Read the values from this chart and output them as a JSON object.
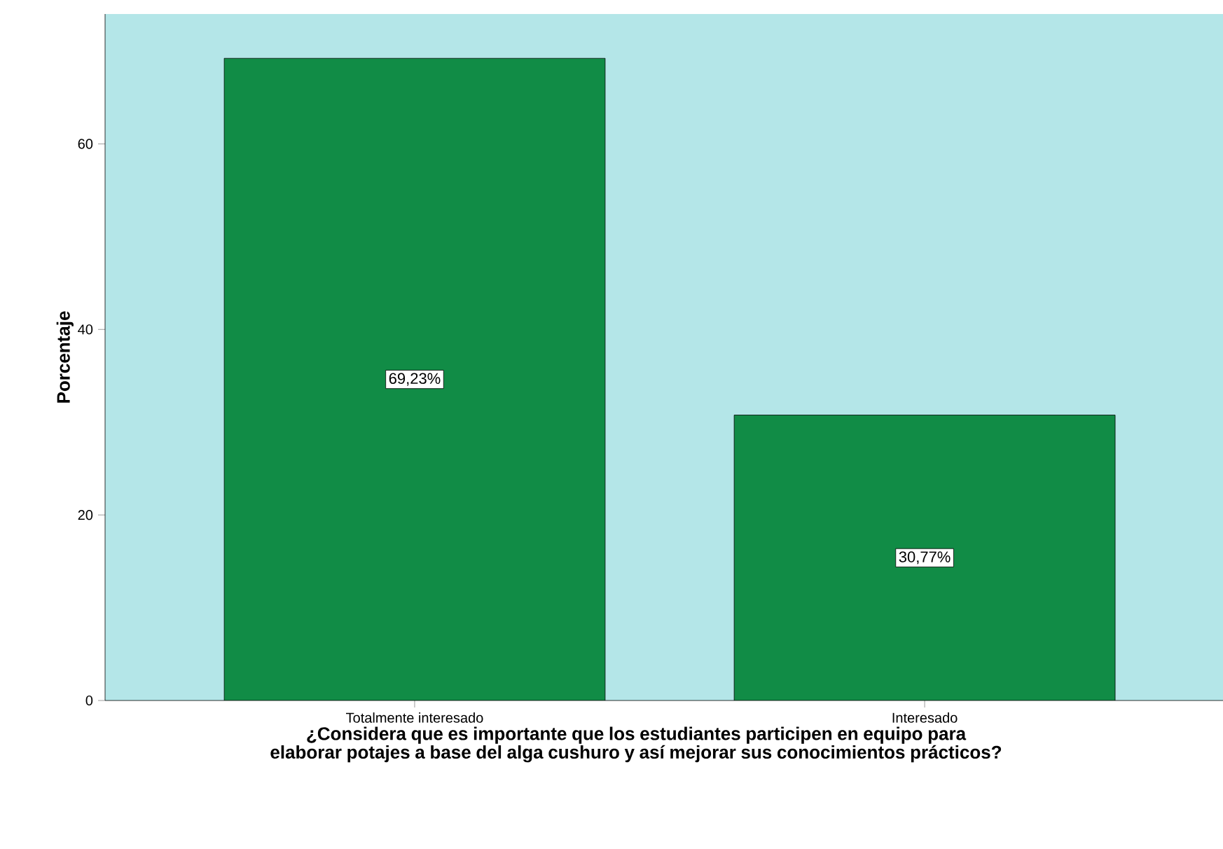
{
  "chart_data": {
    "type": "bar",
    "xlabel": "¿Considera que es importante que los estudiantes participen en equipo para elaborar potajes a base del alga cushuro y así mejorar sus conocimientos prácticos?",
    "ylabel": "Porcentaje",
    "categories": [
      "Totalmente interesado",
      "Interesado"
    ],
    "values": [
      69.23,
      30.77
    ],
    "value_labels": [
      "69,23%",
      "30,77%"
    ],
    "color": "#118c46",
    "ylim": [
      0,
      74
    ],
    "yticks": [
      0,
      20,
      40,
      60
    ]
  }
}
